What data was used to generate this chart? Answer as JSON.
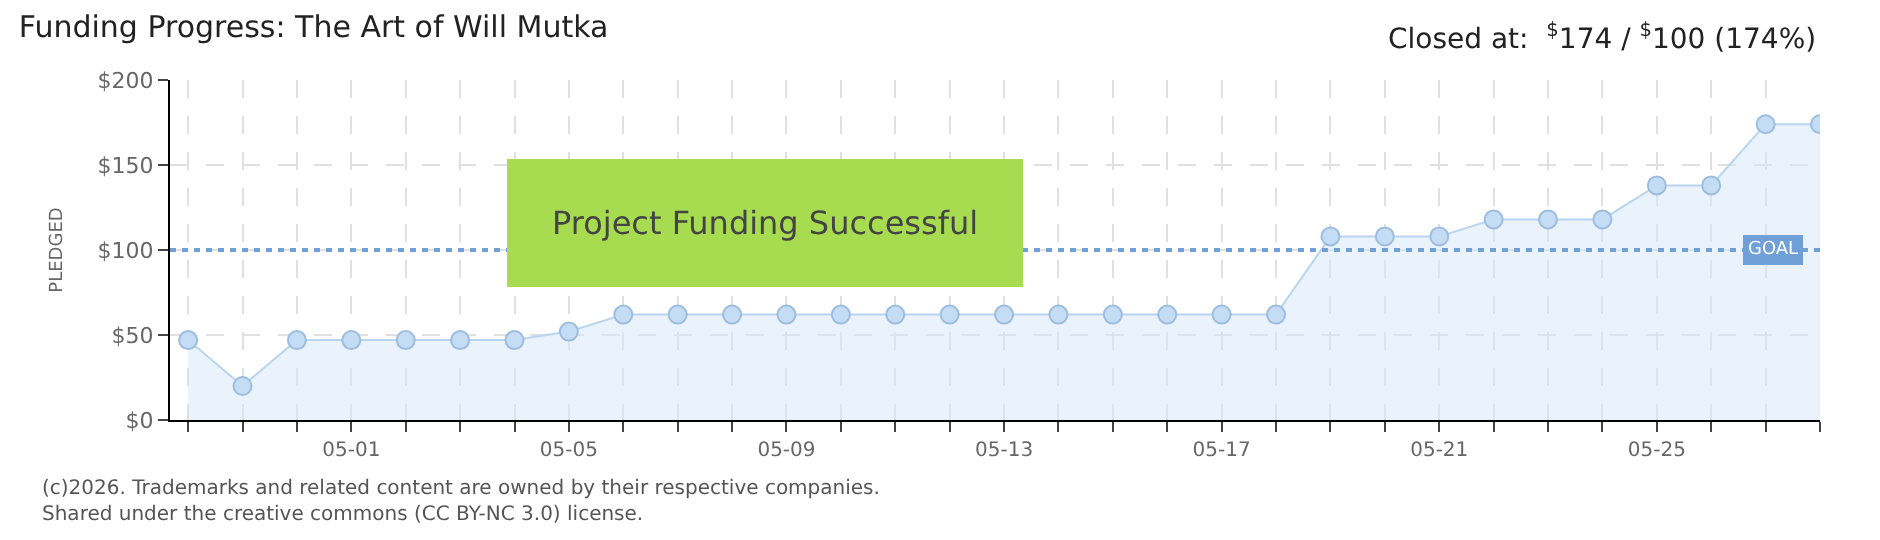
{
  "chart_data": {
    "type": "area",
    "title": "Funding Progress: The Art of Will Mutka",
    "ylabel": "PLEDGED",
    "annotations": [
      "Closed at:  $^{$}$174 / $^{$}$100 (174%)",
      "Project Funding Successful",
      "(c)2026. Trademarks and related content are owned by their respective companies.",
      "Shared under the creative commons (CC BY-NC 3.0) license."
    ],
    "x": [
      "--04-28",
      "--04-29",
      "--04-30",
      "--05-01",
      "--05-02",
      "--05-03",
      "--05-04",
      "--05-05",
      "--05-06",
      "--05-07",
      "--05-08",
      "--05-09",
      "--05-10",
      "--05-11",
      "--05-12",
      "--05-13",
      "--05-14",
      "--05-15",
      "--05-16",
      "--05-17",
      "--05-18",
      "--05-19",
      "--05-20",
      "--05-21",
      "--05-22",
      "--05-23",
      "--05-24",
      "--05-25",
      "--05-26",
      "--05-27",
      "--05-28"
    ],
    "series": [
      {
        "color": "#b8d4f0",
        "values": [
          47,
          20,
          47,
          47,
          47,
          47,
          47,
          52,
          62,
          62,
          62,
          62,
          62,
          62,
          62,
          62,
          62,
          62,
          62,
          62,
          62,
          108,
          108,
          108,
          118,
          118,
          118,
          138,
          138,
          174,
          174
        ]
      }
    ],
    "marker": "circle",
    "grid": true,
    "ylim": [
      0,
      200
    ],
    "yticks": [
      {
        "value": 0,
        "label": "$0"
      },
      {
        "value": 50,
        "label": "$50"
      },
      {
        "value": 100,
        "label": "$100"
      },
      {
        "value": 150,
        "label": "$150"
      },
      {
        "value": 200,
        "label": "$200"
      }
    ],
    "xlim": [
      "--04-27T16:00",
      "--05-28"
    ],
    "xticks": [
      {
        "value": "--04-28",
        "label": null
      },
      {
        "value": "--04-29",
        "label": null
      },
      {
        "value": "--04-30",
        "label": null
      },
      {
        "value": "--05-01",
        "label": "05-01"
      },
      {
        "value": "--05-02",
        "label": null
      },
      {
        "value": "--05-03",
        "label": null
      },
      {
        "value": "--05-04",
        "label": null
      },
      {
        "value": "--05-05",
        "label": "05-05"
      },
      {
        "value": "--05-06",
        "label": null
      },
      {
        "value": "--05-07",
        "label": null
      },
      {
        "value": "--05-08",
        "label": null
      },
      {
        "value": "--05-09",
        "label": "05-09"
      },
      {
        "value": "--05-10",
        "label": null
      },
      {
        "value": "--05-11",
        "label": null
      },
      {
        "value": "--05-12",
        "label": null
      },
      {
        "value": "--05-13",
        "label": "05-13"
      },
      {
        "value": "--05-14",
        "label": null
      },
      {
        "value": "--05-15",
        "label": null
      },
      {
        "value": "--05-16",
        "label": null
      },
      {
        "value": "--05-17",
        "label": "05-17"
      },
      {
        "value": "--05-18",
        "label": null
      },
      {
        "value": "--05-19",
        "label": null
      },
      {
        "value": "--05-20",
        "label": null
      },
      {
        "value": "--05-21",
        "label": "05-21"
      },
      {
        "value": "--05-22",
        "label": null
      },
      {
        "value": "--05-23",
        "label": null
      },
      {
        "value": "--05-24",
        "label": null
      },
      {
        "value": "--05-25",
        "label": "05-25"
      },
      {
        "value": "--05-26",
        "label": null
      },
      {
        "value": "--05-27",
        "label": null
      },
      {
        "value": "--05-28",
        "label": null
      }
    ],
    "ref_lines": [
      {
        "axis": "y",
        "value": 100,
        "label": "GOAL",
        "color": "#6fa0d8",
        "line_style": "dotted"
      }
    ]
  }
}
